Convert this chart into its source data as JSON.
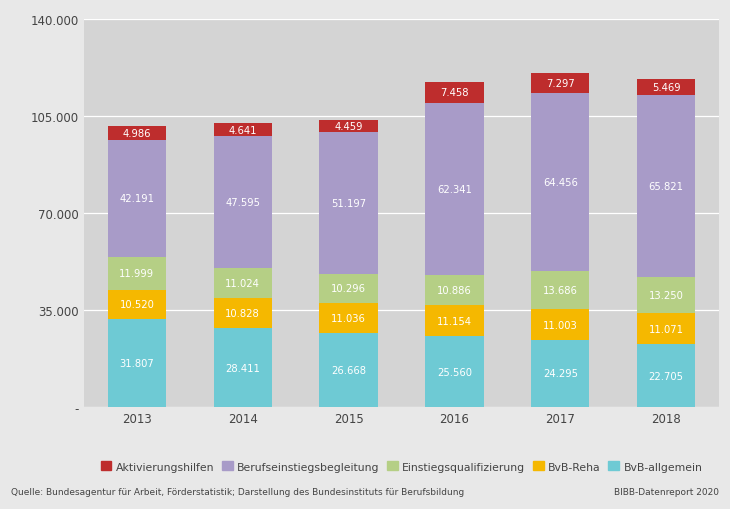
{
  "years": [
    "2013",
    "2014",
    "2015",
    "2016",
    "2017",
    "2018"
  ],
  "series": {
    "BvB_allgemein": [
      31807,
      28411,
      26668,
      25560,
      24295,
      22705
    ],
    "BvB_Reha": [
      10520,
      10828,
      11036,
      11154,
      11003,
      11071
    ],
    "Einstiegsqualifizierung": [
      11999,
      11024,
      10296,
      10886,
      13686,
      13250
    ],
    "Berufseinstiegsbegleitung": [
      42191,
      47595,
      51197,
      62341,
      64456,
      65821
    ],
    "Aktivierungshilfen": [
      4986,
      4641,
      4459,
      7458,
      7297,
      5469
    ]
  },
  "colors": {
    "BvB_allgemein": "#6ecad4",
    "BvB_Reha": "#f5b800",
    "Einstiegsqualifizierung": "#b5cf85",
    "Berufseinstiegsbegleitung": "#a89bc8",
    "Aktivierungshilfen": "#be2d2d"
  },
  "text_colors": {
    "BvB_allgemein": "white",
    "BvB_Reha": "white",
    "Einstiegsqualifizierung": "white",
    "Berufseinstiegsbegleitung": "white",
    "Aktivierungshilfen": "white"
  },
  "labels": {
    "BvB_allgemein": "BvB-allgemein",
    "BvB_Reha": "BvB-Reha",
    "Einstiegsqualifizierung": "Einstiegsqualifizierung",
    "Berufseinstiegsbegleitung": "Berufseinstiegsbegleitung",
    "Aktivierungshilfen": "Aktivierungshilfen"
  },
  "ylim": [
    0,
    140000
  ],
  "yticks": [
    0,
    35000,
    70000,
    105000,
    140000
  ],
  "ytick_labels": [
    "-",
    "35.000",
    "70.000",
    "105.000",
    "140.000"
  ],
  "plot_bg_color": "#d4d4d4",
  "outer_bg_color": "#e8e8e8",
  "bar_width": 0.55,
  "source_text": "Quelle: Bundesagentur für Arbeit, Förderstatistik; Darstellung des Bundesinstituts für Berufsbildung",
  "right_text": "BIBB-Datenreport 2020"
}
